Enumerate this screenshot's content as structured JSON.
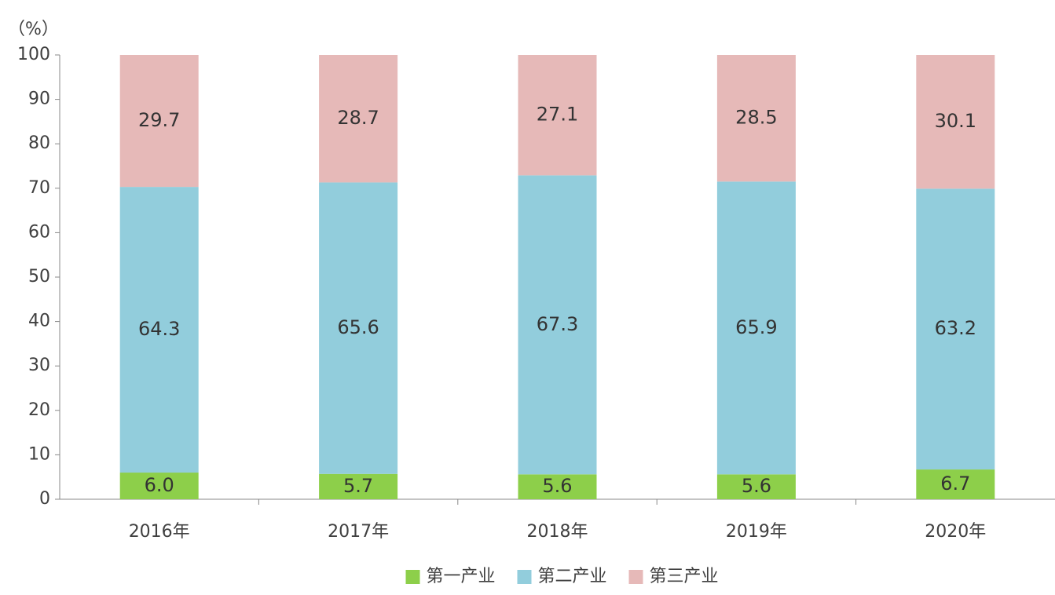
{
  "chart_data": {
    "type": "stacked-bar",
    "y_label": "（%）",
    "categories": [
      "2016年",
      "2017年",
      "2018年",
      "2019年",
      "2020年"
    ],
    "series": [
      {
        "name": "第一产业",
        "color": "#8dcf4a",
        "values": [
          6,
          5.7,
          5.6,
          5.6,
          6.7
        ],
        "value_labels": [
          "6.0",
          "5.7",
          "5.6",
          "5.6",
          "6.7"
        ]
      },
      {
        "name": "第二产业",
        "color": "#92cddc",
        "values": [
          64.3,
          65.6,
          67.3,
          65.9,
          63.2
        ]
      },
      {
        "name": "第三产业",
        "color": "#e6b9b8",
        "values": [
          29.7,
          28.7,
          27.1,
          28.5,
          30.1
        ]
      }
    ],
    "ylim": [
      0,
      100
    ],
    "yticks": [
      0,
      10,
      20,
      30,
      40,
      50,
      60,
      70,
      80,
      90,
      100
    ],
    "legend": "bottom"
  }
}
